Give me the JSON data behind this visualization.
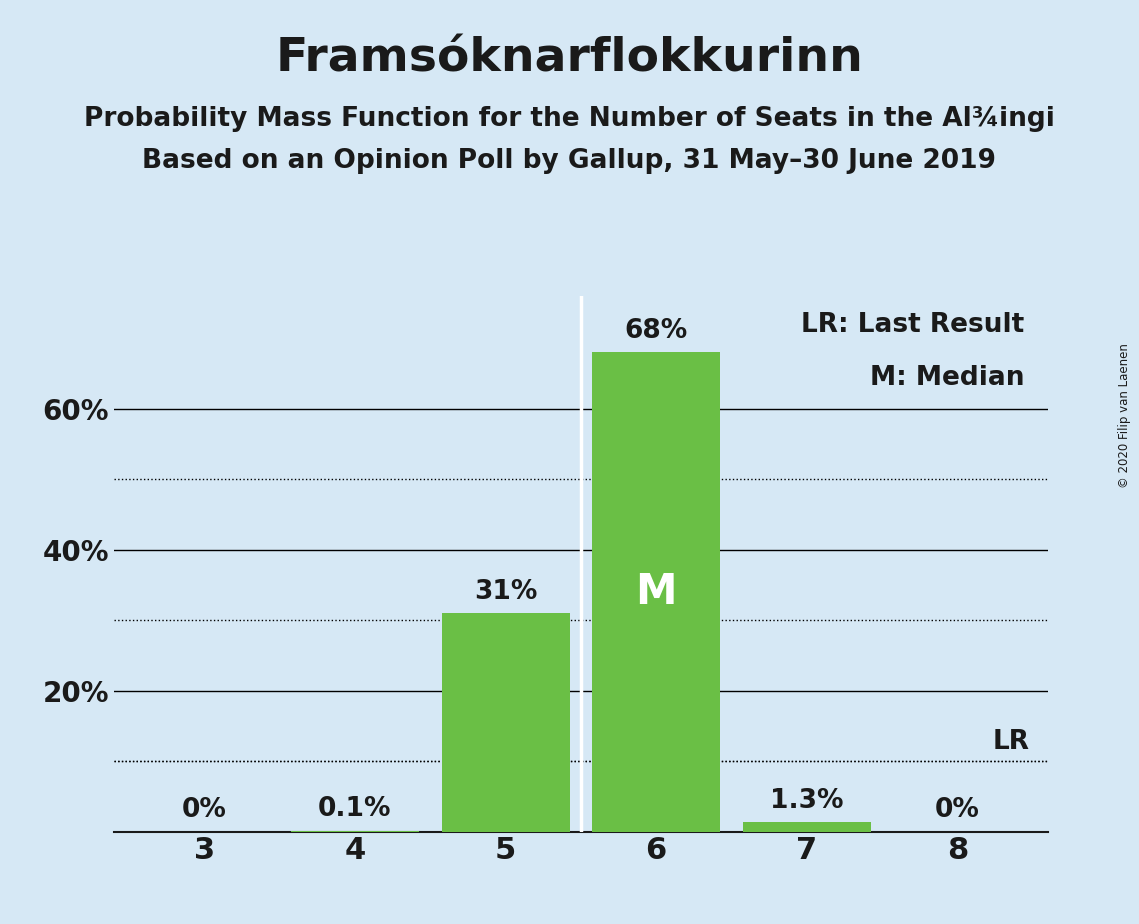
{
  "title": "Framsóknarflokkurinn",
  "subtitle1": "Probability Mass Function for the Number of Seats in the Al¾ingi",
  "subtitle2": "Based on an Opinion Poll by Gallup, 31 May–30 June 2019",
  "copyright": "© 2020 Filip van Laenen",
  "categories": [
    3,
    4,
    5,
    6,
    7,
    8
  ],
  "values": [
    0.0,
    0.1,
    31.0,
    68.0,
    1.3,
    0.0
  ],
  "bar_color": "#6abf45",
  "background_color": "#d6e8f5",
  "bar_labels": [
    "0%",
    "0.1%",
    "31%",
    "68%",
    "1.3%",
    "0%"
  ],
  "median_seat": 6,
  "median_label": "M",
  "lr_value": 10.0,
  "lr_label": "LR",
  "yticks_major": [
    20,
    40,
    60
  ],
  "yticks_dotted": [
    10,
    30,
    50
  ],
  "ylim": [
    0,
    76
  ],
  "legend_text1": "LR: Last Result",
  "legend_text2": "M: Median",
  "title_fontsize": 34,
  "subtitle_fontsize": 19,
  "label_fontsize": 19,
  "tick_fontsize": 20
}
